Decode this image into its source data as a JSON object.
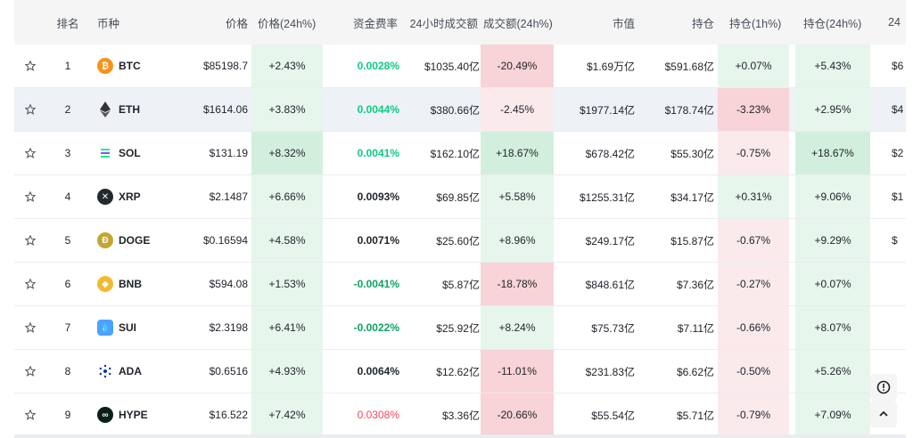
{
  "headers": {
    "rank": "排名",
    "coin": "币种",
    "price": "价格",
    "price24h": "价格(24h%)",
    "funding": "资金费率",
    "vol24h": "24小时成交额",
    "vol24hPct": "成交额(24h%)",
    "mcap": "市值",
    "oi": "持仓",
    "oi1h": "持仓(1h%)",
    "oi24h": "持仓(24h%)",
    "more": "24"
  },
  "rows": [
    {
      "rank": "1",
      "sym": "BTC",
      "price": "$85198.7",
      "price24h": "+2.43%",
      "funding": "0.0028%",
      "vol": "$1035.40亿",
      "volPct": "-20.49%",
      "mcap": "$1.69万亿",
      "oi": "$591.68亿",
      "oi1h": "+0.07%",
      "oi24h": "+5.43%",
      "extra": "$6"
    },
    {
      "rank": "2",
      "sym": "ETH",
      "price": "$1614.06",
      "price24h": "+3.83%",
      "funding": "0.0044%",
      "vol": "$380.66亿",
      "volPct": "-2.45%",
      "mcap": "$1977.14亿",
      "oi": "$178.74亿",
      "oi1h": "-3.23%",
      "oi24h": "+2.95%",
      "extra": "$4"
    },
    {
      "rank": "3",
      "sym": "SOL",
      "price": "$131.19",
      "price24h": "+8.32%",
      "funding": "0.0041%",
      "vol": "$162.10亿",
      "volPct": "+18.67%",
      "mcap": "$678.42亿",
      "oi": "$55.30亿",
      "oi1h": "-0.75%",
      "oi24h": "+18.67%",
      "extra": "$2"
    },
    {
      "rank": "4",
      "sym": "XRP",
      "price": "$2.1487",
      "price24h": "+6.66%",
      "funding": "0.0093%",
      "vol": "$69.85亿",
      "volPct": "+5.58%",
      "mcap": "$1255.31亿",
      "oi": "$34.17亿",
      "oi1h": "+0.31%",
      "oi24h": "+9.06%",
      "extra": "$1"
    },
    {
      "rank": "5",
      "sym": "DOGE",
      "price": "$0.16594",
      "price24h": "+4.58%",
      "funding": "0.0071%",
      "vol": "$25.60亿",
      "volPct": "+8.96%",
      "mcap": "$249.17亿",
      "oi": "$15.87亿",
      "oi1h": "-0.67%",
      "oi24h": "+9.29%",
      "extra": "$"
    },
    {
      "rank": "6",
      "sym": "BNB",
      "price": "$594.08",
      "price24h": "+1.53%",
      "funding": "-0.0041%",
      "vol": "$5.87亿",
      "volPct": "-18.78%",
      "mcap": "$848.61亿",
      "oi": "$7.36亿",
      "oi1h": "-0.27%",
      "oi24h": "+0.07%",
      "extra": ""
    },
    {
      "rank": "7",
      "sym": "SUI",
      "price": "$2.3198",
      "price24h": "+6.41%",
      "funding": "-0.0022%",
      "vol": "$25.92亿",
      "volPct": "+8.24%",
      "mcap": "$75.73亿",
      "oi": "$7.11亿",
      "oi1h": "-0.66%",
      "oi24h": "+8.07%",
      "extra": ""
    },
    {
      "rank": "8",
      "sym": "ADA",
      "price": "$0.6516",
      "price24h": "+4.93%",
      "funding": "0.0064%",
      "vol": "$12.62亿",
      "volPct": "-11.01%",
      "mcap": "$231.83亿",
      "oi": "$6.62亿",
      "oi1h": "-0.50%",
      "oi24h": "+5.26%",
      "extra": ""
    },
    {
      "rank": "9",
      "sym": "HYPE",
      "price": "$16.522",
      "price24h": "+7.42%",
      "funding": "0.0308%",
      "vol": "$3.36亿",
      "volPct": "-20.66%",
      "mcap": "$55.54亿",
      "oi": "$5.71亿",
      "oi1h": "-0.79%",
      "oi24h": "+7.09%",
      "extra": ""
    }
  ],
  "icons": {
    "star": "star-outline-icon",
    "feedback": "alert-circle-icon",
    "scrollTop": "chevron-up-icon"
  },
  "colors": {
    "positive": "#0ecb81",
    "negative": "#f6465d",
    "btc": "#f7931a",
    "bnb": "#f3ba2f",
    "sui": "#4da2ff",
    "doge": "#c3a634",
    "ada": "#0033ad",
    "hype": "#0b1f1a"
  }
}
